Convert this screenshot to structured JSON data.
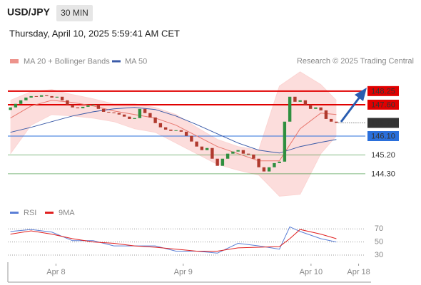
{
  "header": {
    "symbol": "USD/JPY",
    "interval": "30 MIN",
    "timestamp": "Thursday, April 10, 2025 5:59:41 AM CET",
    "copyright": "Research © 2025 Trading Central"
  },
  "chart_data": [
    {
      "type": "candlestick",
      "up_color": "#2f8f3f",
      "down_color": "#b03a2e",
      "open": [
        147.35,
        147.47,
        147.64,
        147.81,
        147.94,
        148.01,
        147.98,
        148.05,
        148.01,
        147.94,
        147.98,
        147.81,
        147.6,
        147.47,
        147.43,
        147.5,
        147.57,
        147.6,
        147.4,
        147.26,
        147.23,
        147.2,
        147.13,
        147.03,
        146.92,
        146.96,
        147.4,
        147.2,
        146.99,
        146.72,
        146.52,
        146.41,
        146.35,
        146.38,
        146.31,
        146.11,
        145.84,
        145.6,
        145.43,
        145.53,
        145.02,
        144.68,
        145.02,
        145.26,
        145.36,
        145.43,
        145.26,
        145.22,
        145.02,
        144.61,
        144.41,
        144.61,
        144.81,
        144.88,
        146.79,
        147.98,
        147.74,
        147.81,
        147.6,
        147.4,
        147.47,
        147.33,
        146.92,
        146.79
      ],
      "close": [
        147.47,
        147.64,
        147.81,
        147.94,
        148.01,
        147.98,
        148.05,
        148.01,
        147.94,
        147.98,
        147.81,
        147.6,
        147.47,
        147.43,
        147.5,
        147.57,
        147.6,
        147.4,
        147.26,
        147.23,
        147.2,
        147.13,
        147.03,
        146.92,
        146.96,
        147.4,
        147.2,
        146.99,
        146.72,
        146.52,
        146.41,
        146.35,
        146.38,
        146.31,
        146.11,
        145.84,
        145.6,
        145.43,
        145.53,
        145.02,
        144.68,
        145.02,
        145.26,
        145.36,
        145.43,
        145.26,
        145.22,
        145.02,
        144.61,
        144.41,
        144.61,
        144.81,
        144.88,
        146.79,
        147.98,
        147.74,
        147.81,
        147.6,
        147.4,
        147.47,
        147.33,
        146.92,
        146.79,
        146.73
      ],
      "series": [
        {
          "name": "MA 20 + Bollinger Bands",
          "color": "#e8786f",
          "x": [
            0,
            4,
            8,
            12,
            16,
            20,
            24,
            28,
            32,
            36,
            40,
            44,
            48,
            52,
            56,
            60,
            63
          ],
          "values": [
            146.96,
            147.54,
            147.81,
            147.71,
            147.54,
            147.3,
            147.13,
            146.96,
            146.62,
            146.11,
            145.6,
            145.26,
            144.92,
            144.92,
            146.45,
            147.2,
            147.13
          ]
        },
        {
          "name": "MA 50",
          "color": "#3b5ba8",
          "x": [
            0,
            4,
            8,
            12,
            16,
            20,
            24,
            28,
            32,
            36,
            40,
            44,
            48,
            52,
            56,
            60,
            63
          ],
          "values": [
            146.28,
            146.52,
            146.79,
            147.06,
            147.26,
            147.4,
            147.47,
            147.37,
            147.06,
            146.65,
            146.21,
            145.77,
            145.43,
            145.29,
            145.6,
            145.8,
            145.94
          ]
        }
      ],
      "bands": {
        "color": "#fbd5d3",
        "x": [
          0,
          4,
          8,
          12,
          16,
          20,
          24,
          28,
          32,
          36,
          40,
          44,
          48,
          52,
          56,
          60,
          63
        ],
        "upper": [
          147.81,
          148.22,
          148.32,
          148.08,
          147.88,
          147.64,
          147.64,
          147.47,
          147.13,
          146.52,
          145.94,
          145.6,
          145.43,
          148.49,
          149.17,
          148.56,
          147.81
        ],
        "lower": [
          145.26,
          146.62,
          147.13,
          147.06,
          146.96,
          146.79,
          146.45,
          146.28,
          145.77,
          145.26,
          144.75,
          144.47,
          144.24,
          143.23,
          143.32,
          145.26,
          146.11
        ]
      },
      "levels": [
        {
          "value": 148.25,
          "color": "#e00000",
          "style": "box"
        },
        {
          "value": 147.6,
          "label": "147.60",
          "color": "#e00000",
          "style": "box"
        },
        {
          "value": 146.1,
          "label": "146.10",
          "color": "#2a6fdb",
          "style": "box"
        },
        {
          "value": 145.2,
          "label": "145.20",
          "color": "#2e8b2e",
          "style": "text"
        },
        {
          "value": 144.3,
          "label": "144.30",
          "color": "#2e8b2e",
          "style": "text"
        }
      ],
      "last_price": {
        "value": 146.73,
        "color": "#333333"
      },
      "xlim": [
        -0.5,
        68.6
      ],
      "ylim": [
        142.9,
        149.3
      ]
    },
    {
      "type": "line",
      "series": [
        {
          "name": "RSI",
          "color": "#5b7fd6",
          "x": [
            0,
            4,
            8,
            12,
            16,
            20,
            24,
            28,
            32,
            36,
            40,
            44,
            48,
            52,
            54,
            56,
            60,
            63
          ],
          "values": [
            66,
            69,
            65,
            52,
            52,
            44,
            44,
            44,
            36,
            36,
            33,
            48,
            44,
            39,
            73,
            66,
            55,
            50
          ]
        },
        {
          "name": "9MA",
          "color": "#e02020",
          "x": [
            0,
            4,
            8,
            12,
            16,
            20,
            24,
            28,
            32,
            36,
            40,
            44,
            48,
            52,
            54,
            56,
            60,
            63
          ],
          "values": [
            62,
            67,
            62,
            55,
            50,
            48,
            44,
            42,
            39,
            36,
            36,
            41,
            42,
            43,
            55,
            69,
            62,
            55
          ]
        }
      ],
      "xlim": [
        -0.5,
        68.6
      ],
      "ylim": [
        17,
        80
      ],
      "yticks": [
        30,
        50,
        70
      ],
      "grid": true,
      "xticks": [
        {
          "value": 8.8,
          "label": "Apr 8"
        },
        {
          "value": 33.4,
          "label": "Apr 9"
        },
        {
          "value": 58.1,
          "label": "Apr 10"
        },
        {
          "value": 67.3,
          "label": "Apr 18"
        }
      ]
    }
  ]
}
